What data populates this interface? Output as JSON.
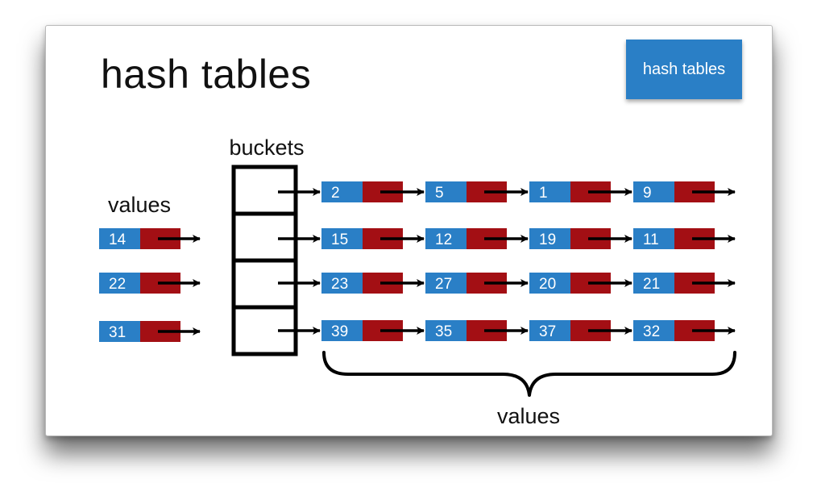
{
  "slide": {
    "title": "hash tables",
    "badge_label": "hash tables"
  },
  "labels": {
    "buckets": "buckets",
    "values_left": "values",
    "values_bottom": "values"
  },
  "input_values": [
    "14",
    "22",
    "31"
  ],
  "chains": [
    [
      "2",
      "5",
      "1",
      "9"
    ],
    [
      "15",
      "12",
      "19",
      "11"
    ],
    [
      "23",
      "27",
      "20",
      "21"
    ],
    [
      "39",
      "35",
      "37",
      "32"
    ]
  ],
  "colors": {
    "node_value": "#2a7fc6",
    "node_pointer": "#a30f14",
    "text_on_node": "#ffffff",
    "stroke": "#000000",
    "badge": "#2a7fc6"
  }
}
